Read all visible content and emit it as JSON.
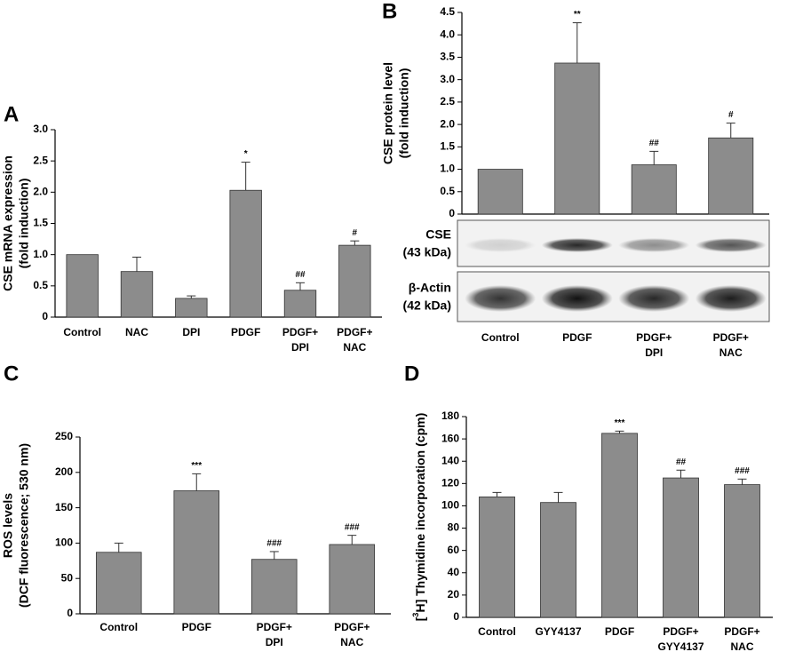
{
  "chart_data": [
    {
      "type": "bar",
      "panel": "A",
      "ylabel": [
        "CSE mRNA expression",
        "(fold induction)"
      ],
      "categories": [
        "Control",
        "NAC",
        "DPI",
        "PDGF",
        [
          "PDGF+",
          "DPI"
        ],
        [
          "PDGF+",
          "NAC"
        ]
      ],
      "values": [
        1.0,
        0.73,
        0.3,
        2.03,
        0.43,
        1.15
      ],
      "errors": [
        null,
        0.23,
        0.04,
        0.45,
        0.12,
        0.07
      ],
      "annotations": [
        null,
        null,
        null,
        "*",
        "##",
        "#"
      ],
      "color": "#8c8c8c",
      "ylim": [
        0,
        3
      ],
      "yticks": [
        0,
        0.5,
        {
          "value": 1,
          "label": "1.0"
        },
        1.5,
        {
          "value": 2,
          "label": "2.0"
        },
        2.5,
        {
          "value": 3,
          "label": "3.0"
        }
      ]
    },
    {
      "type": "bar",
      "panel": "B",
      "ylabel": [
        "CSE protein level",
        "(fold induction)"
      ],
      "categories": [
        "Control",
        "PDGF",
        [
          "PDGF+",
          "DPI"
        ],
        [
          "PDGF+",
          "NAC"
        ]
      ],
      "values": [
        1.0,
        3.37,
        1.1,
        1.7
      ],
      "errors": [
        null,
        0.9,
        0.3,
        0.33
      ],
      "annotations": [
        null,
        "**",
        "##",
        "#"
      ],
      "color": "#8c8c8c",
      "ylim": [
        0,
        4.5
      ],
      "yticks": [
        0,
        0.5,
        {
          "value": 1,
          "label": "1.0"
        },
        1.5,
        {
          "value": 2,
          "label": "2.0"
        },
        2.5,
        {
          "value": 3,
          "label": "3.0"
        },
        3.5,
        {
          "value": 4,
          "label": "4.0"
        },
        4.5
      ],
      "blot": [
        {
          "label": [
            "CSE",
            "(43 kDa)"
          ]
        },
        {
          "label": [
            "β-Actin",
            "(42 kDa)"
          ]
        }
      ]
    },
    {
      "type": "bar",
      "panel": "C",
      "ylabel": [
        "ROS levels",
        "(DCF fluorescence; 530 nm)"
      ],
      "categories": [
        "Control",
        "PDGF",
        [
          "PDGF+",
          "DPI"
        ],
        [
          "PDGF+",
          "NAC"
        ]
      ],
      "values": [
        87,
        174,
        77,
        98
      ],
      "errors": [
        13,
        24,
        11,
        13
      ],
      "annotations": [
        null,
        "***",
        "###",
        "###"
      ],
      "color": "#8c8c8c",
      "ylim": [
        0,
        250
      ],
      "yticks": [
        0,
        50,
        100,
        150,
        200,
        250
      ]
    },
    {
      "type": "bar",
      "panel": "D",
      "ylabel_rich": [
        "[",
        "3",
        "H] Thymidine incorporation (cpm)"
      ],
      "categories": [
        "Control",
        "GYY4137",
        "PDGF",
        [
          "PDGF+",
          "GYY4137"
        ],
        [
          "PDGF+",
          "NAC"
        ]
      ],
      "values": [
        108,
        103,
        165,
        125,
        119
      ],
      "errors": [
        4,
        9,
        2,
        7,
        5
      ],
      "annotations": [
        null,
        null,
        "***",
        "##",
        "###"
      ],
      "color": "#8c8c8c",
      "ylim": [
        0,
        180
      ],
      "yticks": [
        0,
        20,
        40,
        60,
        80,
        100,
        120,
        140,
        160,
        180
      ]
    }
  ]
}
